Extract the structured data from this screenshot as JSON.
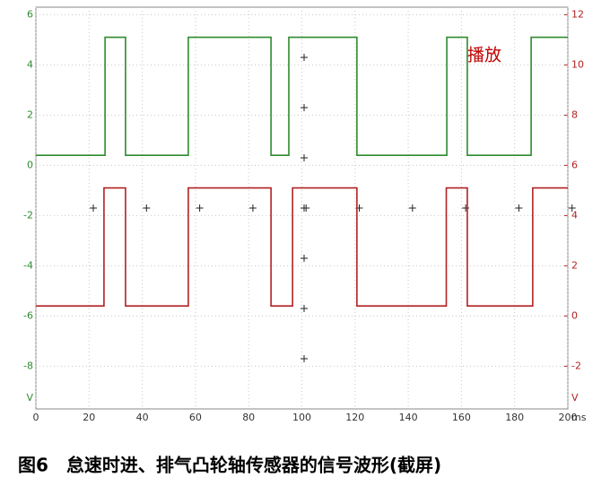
{
  "chart_data": {
    "type": "line",
    "annotation": "播放",
    "caption": "图6　怠速时进、排气凸轮轴传感器的信号波形(截屏)",
    "x_unit": "ms",
    "y_unit": "V",
    "y2_unit": "V",
    "xlim": [
      0,
      200
    ],
    "xticks": [
      0,
      20,
      40,
      60,
      80,
      100,
      120,
      140,
      160,
      180,
      200
    ],
    "ylim": [
      -9.7,
      6.3
    ],
    "yticks": [
      -8,
      -6,
      -4,
      -2,
      0,
      2,
      4,
      6
    ],
    "y2lim": [
      -3.7,
      12.3
    ],
    "y2ticks": [
      -2,
      0,
      2,
      4,
      6,
      8,
      10,
      12
    ],
    "grid": true,
    "series": [
      {
        "color": "#2e8b2e",
        "x": [
          0,
          26,
          26,
          33.7,
          33.7,
          57.3,
          57.3,
          88.4,
          88.4,
          95.1,
          95.1,
          120.7,
          120.7,
          154.5,
          154.5,
          162.2,
          162.2,
          186.2,
          186.2,
          200
        ],
        "values": [
          0.4,
          0.4,
          5.1,
          5.1,
          0.4,
          0.4,
          5.1,
          5.1,
          0.4,
          0.4,
          5.1,
          5.1,
          0.4,
          0.4,
          5.1,
          5.1,
          0.4,
          0.4,
          5.1,
          5.1
        ]
      },
      {
        "color": "#b22222",
        "axis": "y2",
        "x": [
          0,
          25.6,
          25.6,
          33.7,
          33.7,
          57.3,
          57.3,
          88.4,
          88.4,
          96.5,
          96.5,
          120.7,
          120.7,
          154.3,
          154.3,
          162.2,
          162.2,
          186.8,
          186.8,
          200
        ],
        "values": [
          0.4,
          0.4,
          5.1,
          5.1,
          0.4,
          0.4,
          5.1,
          5.1,
          0.4,
          0.4,
          5.1,
          5.1,
          0.4,
          0.4,
          5.1,
          5.1,
          0.4,
          0.4,
          5.1,
          5.1
        ]
      }
    ]
  }
}
